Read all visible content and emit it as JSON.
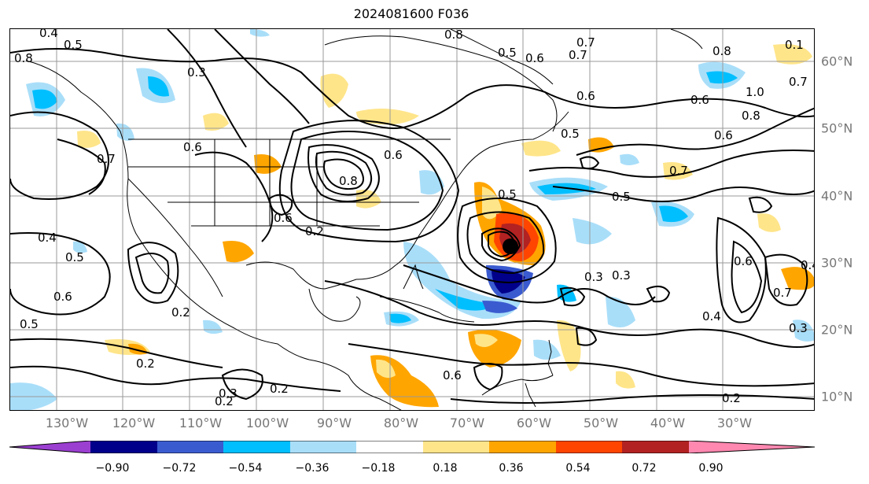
{
  "title": "2024081600 F036",
  "lon_labels": [
    "130°W",
    "120°W",
    "110°W",
    "100°W",
    "90°W",
    "80°W",
    "70°W",
    "60°W",
    "50°W",
    "40°W",
    "30°W"
  ],
  "lat_labels": [
    "60°N",
    "50°N",
    "40°N",
    "30°N",
    "20°N",
    "10°N"
  ],
  "colorbar": {
    "ticks": [
      "−0.90",
      "−0.72",
      "−0.54",
      "−0.36",
      "−0.18",
      "0.18",
      "0.36",
      "0.54",
      "0.72",
      "0.90"
    ],
    "colors": [
      "#9b3fd1",
      "#00008b",
      "#3a5bd0",
      "#00bfff",
      "#a9def9",
      "#ffffff",
      "#ffe58a",
      "#ffa500",
      "#ff4500",
      "#b22222",
      "#ff88b0"
    ]
  },
  "contour_labels": [
    "0.4",
    "0.5",
    "0.8",
    "0.3",
    "0.7",
    "0.6",
    "0.8",
    "0.7",
    "0.6",
    "0.5",
    "0.6",
    "0.7",
    "0.6",
    "0.8",
    "1.0",
    "0.7",
    "0.8",
    "0.6",
    "0.7",
    "0.5",
    "0.5",
    "0.6",
    "0.2",
    "0.4",
    "0.5",
    "0.6",
    "0.5",
    "0.2",
    "0.2",
    "0.3",
    "0.2",
    "0.2",
    "0.3",
    "0.3",
    "0.4",
    "0.6",
    "0.4",
    "0.7",
    "0.3",
    "0.2",
    "0.6",
    "0.8",
    "0.6",
    "0.5",
    "0.1"
  ],
  "colors": {
    "contour": "#000000",
    "grid": "#999999",
    "tick_label": "#777777"
  }
}
